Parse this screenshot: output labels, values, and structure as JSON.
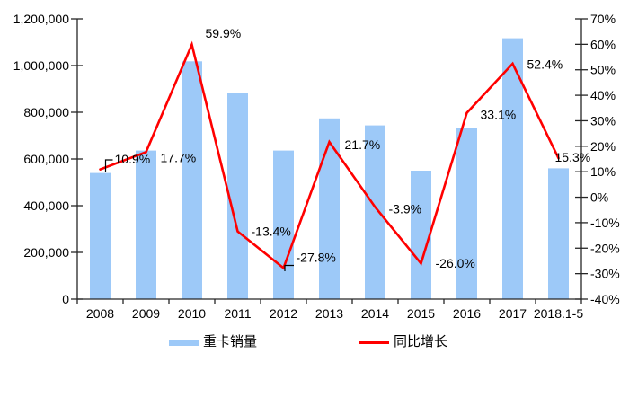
{
  "chart_data": {
    "type": "combo-bar-line",
    "categories": [
      "2008",
      "2009",
      "2010",
      "2011",
      "2012",
      "2013",
      "2014",
      "2015",
      "2016",
      "2017",
      "2018.1-5"
    ],
    "series": [
      {
        "name": "重卡销量",
        "type": "bar",
        "axis": "left",
        "color": "#9DC9F8",
        "values": [
          540000,
          636000,
          1018000,
          881000,
          636000,
          774000,
          744000,
          550000,
          733000,
          1117000,
          560000
        ]
      },
      {
        "name": "同比增长",
        "type": "line",
        "axis": "right",
        "color": "#FF0000",
        "values": [
          10.9,
          17.7,
          59.9,
          -13.4,
          -27.8,
          21.7,
          -3.9,
          -26.0,
          33.1,
          52.4,
          15.3
        ],
        "point_labels": [
          "10.9%",
          "17.7%",
          "59.9%",
          "-13.4%",
          "-27.8%",
          "21.7%",
          "-3.9%",
          "-26.0%",
          "33.1%",
          "52.4%",
          "15.3%"
        ]
      }
    ],
    "left_axis": {
      "min": 0,
      "max": 1200000,
      "step": 200000,
      "tick_labels": [
        "1,200,000",
        "1,000,000",
        "800,000",
        "600,000",
        "400,000",
        "200,000",
        "0"
      ]
    },
    "right_axis": {
      "min": -40,
      "max": 70,
      "step": 10,
      "tick_labels": [
        "70%",
        "60%",
        "50%",
        "40%",
        "30%",
        "20%",
        "10%",
        "0%",
        "-10%",
        "-20%",
        "-30%",
        "-40%"
      ]
    },
    "grid": false,
    "legend_position": "bottom",
    "title": "",
    "colors": {
      "axis": "#262626",
      "text": "#000000",
      "background": "#ffffff"
    }
  }
}
